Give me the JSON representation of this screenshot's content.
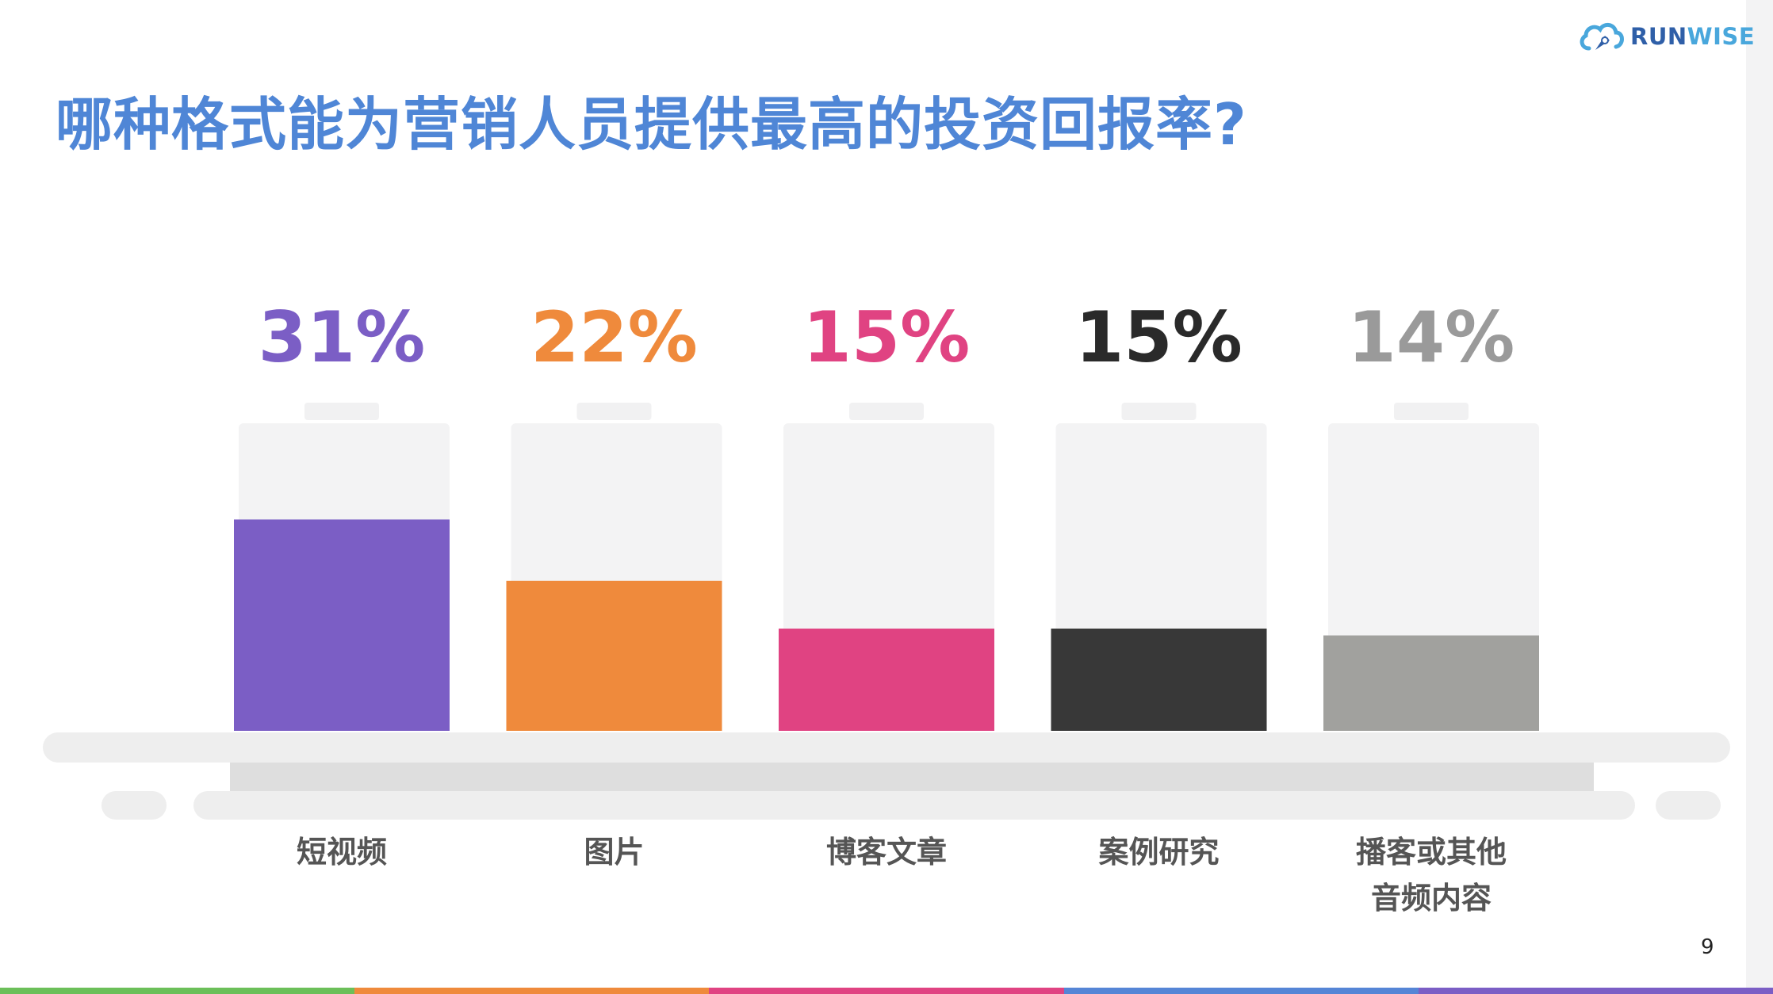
{
  "slide": {
    "title": "哪种格式能为营销人员提供最高的投资回报率?",
    "page_number": "9"
  },
  "logo": {
    "icon": "cloud-rocket-icon",
    "text_part1": "RUN",
    "text_part2": "WISE"
  },
  "colors": {
    "title": "#4f86d6",
    "bottom_bar": [
      "#6bbf59",
      "#ef8a3c",
      "#e04382",
      "#5585d6",
      "#7b5ec5"
    ]
  },
  "chart_data": {
    "type": "bar",
    "categories": [
      "短视频",
      "图片",
      "博客文章",
      "案例研究",
      "播客或其他\n音频内容"
    ],
    "values": [
      31,
      22,
      15,
      15,
      14
    ],
    "value_labels": [
      "31%",
      "22%",
      "15%",
      "15%",
      "14%"
    ],
    "colors": [
      "#7b5ec5",
      "#ef8a3c",
      "#e04382",
      "#383838",
      "#a1a19e"
    ],
    "label_colors": [
      "#7b5ec5",
      "#ef8a3c",
      "#e04382",
      "#2a2a2a",
      "#9a9a9a"
    ],
    "ylim": [
      0,
      100
    ],
    "xlabel": "",
    "ylabel": "",
    "grid": false,
    "legend": "none"
  }
}
